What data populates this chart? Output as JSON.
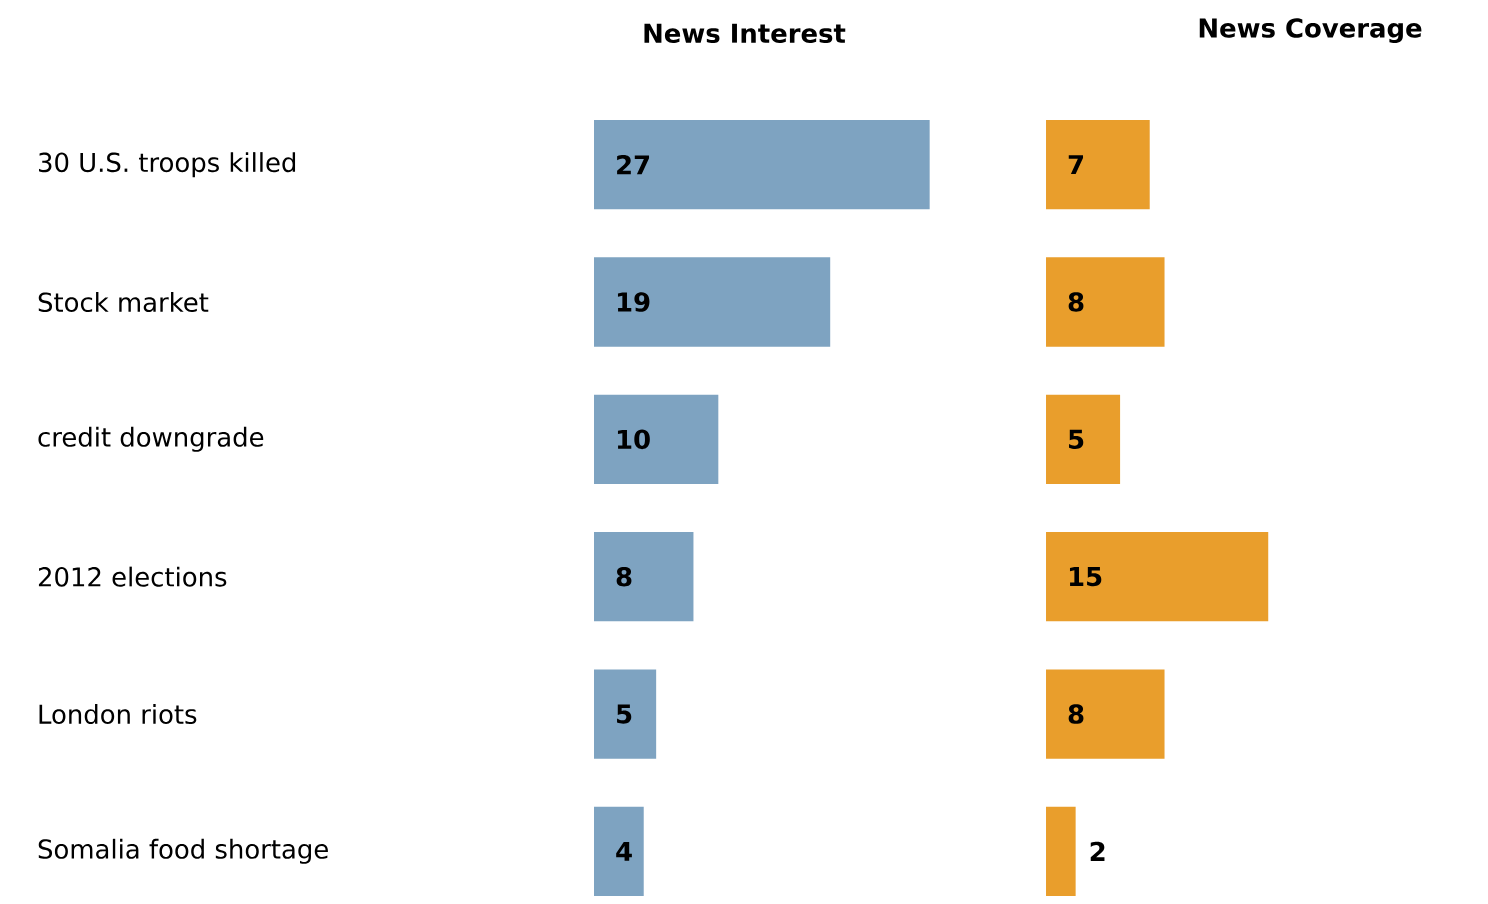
{
  "chart_data": [
    {
      "type": "bar",
      "orientation": "horizontal",
      "title": "News Interest",
      "categories": [
        "30 U.S. troops killed",
        "Stock market",
        "credit downgrade",
        "2012 elections",
        "London riots",
        "Somalia food shortage"
      ],
      "values": [
        27,
        19,
        10,
        8,
        5,
        4
      ],
      "color": "#7ea3c1",
      "data_labels": true,
      "tick_labels": "y"
    },
    {
      "type": "bar",
      "orientation": "horizontal",
      "title": "News Coverage",
      "categories": [
        null,
        null,
        null,
        null,
        null,
        null
      ],
      "values": [
        7,
        8,
        5,
        15,
        8,
        2
      ],
      "color": "#e99e2c",
      "data_labels": true,
      "tick_labels": false
    }
  ]
}
